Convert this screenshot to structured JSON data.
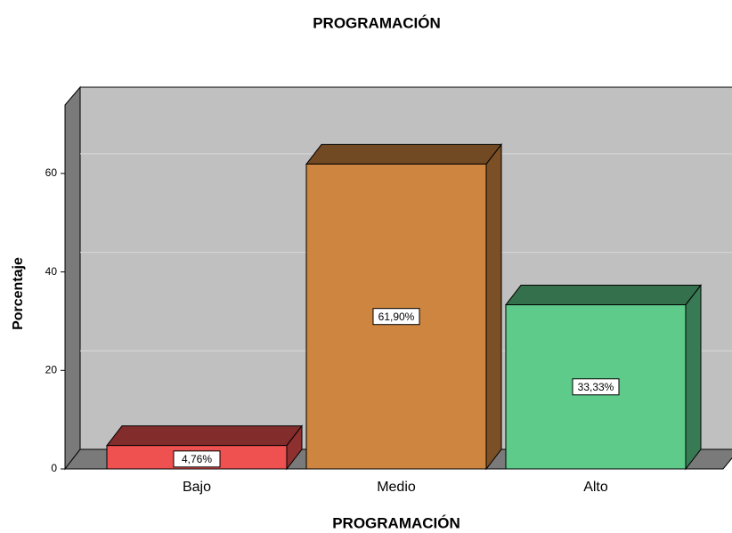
{
  "chart_data": {
    "type": "bar3d",
    "title": "PROGRAMACIÓN",
    "x_label": "PROGRAMACIÓN",
    "y_label": "Porcentaje",
    "categories": [
      "Bajo",
      "Medio",
      "Alto"
    ],
    "values": [
      4.76,
      61.9,
      33.33
    ],
    "value_labels": [
      "4,76%",
      "61,90%",
      "33,33%"
    ],
    "colors": [
      "#ef5050",
      "#cd853f",
      "#5ecb8a"
    ],
    "ylim": [
      0,
      73.5
    ],
    "yticks": [
      0,
      20,
      40,
      60
    ],
    "grid": true
  }
}
